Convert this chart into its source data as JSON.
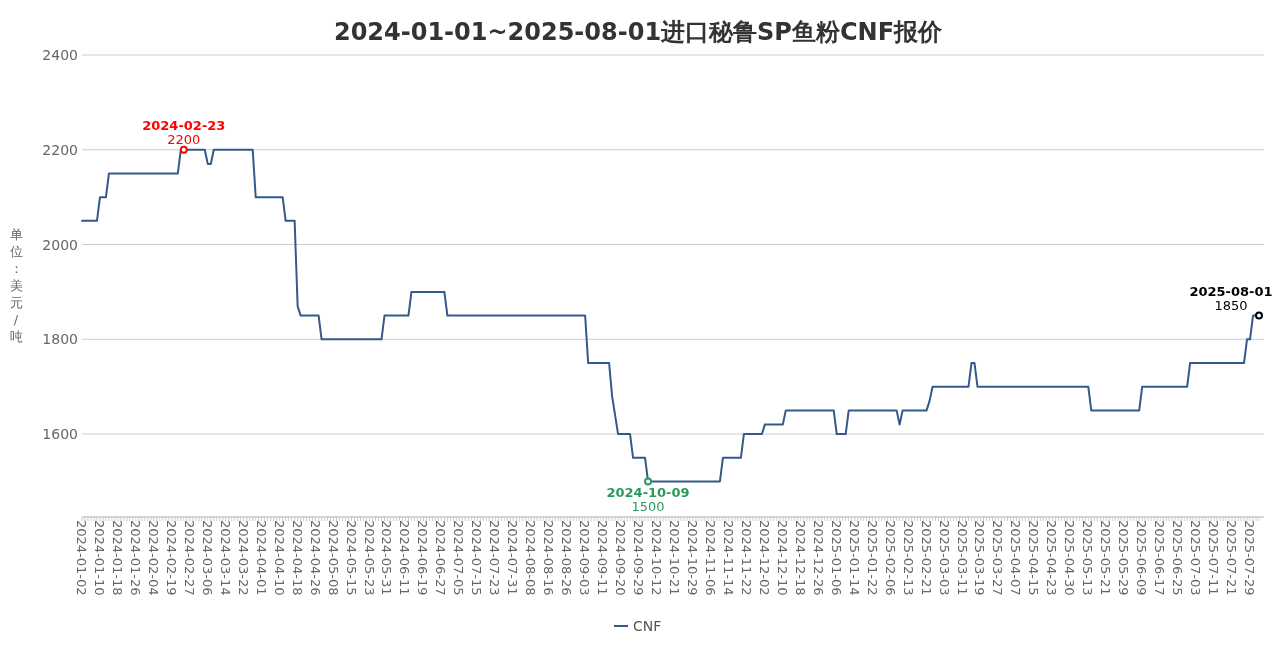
{
  "chart_data": {
    "type": "line",
    "title": "2024-01-01~2025-08-01进口秘鲁SP鱼粉CNF报价",
    "ylabel": "单位：美元/吨",
    "categories": [
      "2024-01-02",
      null,
      null,
      null,
      null,
      null,
      "2024-01-10",
      null,
      null,
      null,
      null,
      null,
      "2024-01-18",
      null,
      null,
      null,
      null,
      null,
      "2024-01-26",
      null,
      null,
      null,
      null,
      null,
      "2024-02-04",
      null,
      null,
      null,
      null,
      null,
      "2024-02-19",
      null,
      null,
      null,
      null,
      null,
      "2024-02-27",
      null,
      null,
      null,
      null,
      null,
      "2024-03-06",
      null,
      null,
      null,
      null,
      null,
      "2024-03-14",
      null,
      null,
      null,
      null,
      null,
      "2024-03-22",
      null,
      null,
      null,
      null,
      null,
      "2024-04-01",
      null,
      null,
      null,
      null,
      null,
      "2024-04-10",
      null,
      null,
      null,
      null,
      null,
      "2024-04-18",
      null,
      null,
      null,
      null,
      null,
      "2024-04-26",
      null,
      null,
      null,
      null,
      null,
      "2024-05-08",
      null,
      null,
      null,
      null,
      null,
      "2024-05-15",
      null,
      null,
      null,
      null,
      null,
      "2024-05-23",
      null,
      null,
      null,
      null,
      null,
      "2024-05-31",
      null,
      null,
      null,
      null,
      null,
      "2024-06-11",
      null,
      null,
      null,
      null,
      null,
      "2024-06-19",
      null,
      null,
      null,
      null,
      null,
      "2024-06-27",
      null,
      null,
      null,
      null,
      null,
      "2024-07-05",
      null,
      null,
      null,
      null,
      null,
      "2024-07-15",
      null,
      null,
      null,
      null,
      null,
      "2024-07-23",
      null,
      null,
      null,
      null,
      null,
      "2024-07-31",
      null,
      null,
      null,
      null,
      null,
      "2024-08-08",
      null,
      null,
      null,
      null,
      null,
      "2024-08-16",
      null,
      null,
      null,
      null,
      null,
      "2024-08-26",
      null,
      null,
      null,
      null,
      null,
      "2024-09-03",
      null,
      null,
      null,
      null,
      null,
      "2024-09-11",
      null,
      null,
      null,
      null,
      null,
      "2024-09-20",
      null,
      null,
      null,
      null,
      null,
      "2024-09-29",
      null,
      null,
      null,
      null,
      null,
      "2024-10-12",
      null,
      null,
      null,
      null,
      null,
      "2024-10-21",
      null,
      null,
      null,
      null,
      null,
      "2024-10-29",
      null,
      null,
      null,
      null,
      null,
      "2024-11-06",
      null,
      null,
      null,
      null,
      null,
      "2024-11-14",
      null,
      null,
      null,
      null,
      null,
      "2024-11-22",
      null,
      null,
      null,
      null,
      null,
      "2024-12-02",
      null,
      null,
      null,
      null,
      null,
      "2024-12-10",
      null,
      null,
      null,
      null,
      null,
      "2024-12-18",
      null,
      null,
      null,
      null,
      null,
      "2024-12-26",
      null,
      null,
      null,
      null,
      null,
      "2025-01-06",
      null,
      null,
      null,
      null,
      null,
      "2025-01-14",
      null,
      null,
      null,
      null,
      null,
      "2025-01-22",
      null,
      null,
      null,
      null,
      null,
      "2025-02-06",
      null,
      null,
      null,
      null,
      null,
      "2025-02-13",
      null,
      null,
      null,
      null,
      null,
      "2025-02-21",
      null,
      null,
      null,
      null,
      null,
      "2025-03-03",
      null,
      null,
      null,
      null,
      null,
      "2025-03-11",
      null,
      null,
      null,
      null,
      null,
      "2025-03-19",
      null,
      null,
      null,
      null,
      null,
      "2025-03-27",
      null,
      null,
      null,
      null,
      null,
      "2025-04-07",
      null,
      null,
      null,
      null,
      null,
      "2025-04-15",
      null,
      null,
      null,
      null,
      null,
      "2025-04-23",
      null,
      null,
      null,
      null,
      null,
      "2025-04-30",
      null,
      null,
      null,
      null,
      null,
      "2025-05-13",
      null,
      null,
      null,
      null,
      null,
      "2025-05-21",
      null,
      null,
      null,
      null,
      null,
      "2025-05-29",
      null,
      null,
      null,
      null,
      null,
      "2025-06-09",
      null,
      null,
      null,
      null,
      null,
      "2025-06-17",
      null,
      null,
      null,
      null,
      null,
      "2025-06-25",
      null,
      null,
      null,
      null,
      null,
      "2025-07-03",
      null,
      null,
      null,
      null,
      null,
      "2025-07-11",
      null,
      null,
      null,
      null,
      null,
      "2025-07-21",
      null,
      null,
      null,
      null,
      null,
      "2025-07-29",
      null,
      null,
      null
    ],
    "series": [
      {
        "name": "CNF",
        "color": "#345a8c",
        "values": [
          2050,
          2050,
          2050,
          2050,
          2050,
          2050,
          2100,
          2100,
          2100,
          2150,
          2150,
          2150,
          2150,
          2150,
          2150,
          2150,
          2150,
          2150,
          2150,
          2150,
          2150,
          2150,
          2150,
          2150,
          2150,
          2150,
          2150,
          2150,
          2150,
          2150,
          2150,
          2150,
          2150,
          2200,
          2200,
          2200,
          2200,
          2200,
          2200,
          2200,
          2200,
          2200,
          2170,
          2170,
          2200,
          2200,
          2200,
          2200,
          2200,
          2200,
          2200,
          2200,
          2200,
          2200,
          2200,
          2200,
          2200,
          2200,
          2100,
          2100,
          2100,
          2100,
          2100,
          2100,
          2100,
          2100,
          2100,
          2100,
          2050,
          2050,
          2050,
          2050,
          1870,
          1850,
          1850,
          1850,
          1850,
          1850,
          1850,
          1850,
          1800,
          1800,
          1800,
          1800,
          1800,
          1800,
          1800,
          1800,
          1800,
          1800,
          1800,
          1800,
          1800,
          1800,
          1800,
          1800,
          1800,
          1800,
          1800,
          1800,
          1800,
          1850,
          1850,
          1850,
          1850,
          1850,
          1850,
          1850,
          1850,
          1850,
          1900,
          1900,
          1900,
          1900,
          1900,
          1900,
          1900,
          1900,
          1900,
          1900,
          1900,
          1900,
          1850,
          1850,
          1850,
          1850,
          1850,
          1850,
          1850,
          1850,
          1850,
          1850,
          1850,
          1850,
          1850,
          1850,
          1850,
          1850,
          1850,
          1850,
          1850,
          1850,
          1850,
          1850,
          1850,
          1850,
          1850,
          1850,
          1850,
          1850,
          1850,
          1850,
          1850,
          1850,
          1850,
          1850,
          1850,
          1850,
          1850,
          1850,
          1850,
          1850,
          1850,
          1850,
          1850,
          1850,
          1850,
          1850,
          1850,
          1750,
          1750,
          1750,
          1750,
          1750,
          1750,
          1750,
          1750,
          1680,
          1640,
          1600,
          1600,
          1600,
          1600,
          1600,
          1550,
          1550,
          1550,
          1550,
          1550,
          1500,
          1500,
          1500,
          1500,
          1500,
          1500,
          1500,
          1500,
          1500,
          1500,
          1500,
          1500,
          1500,
          1500,
          1500,
          1500,
          1500,
          1500,
          1500,
          1500,
          1500,
          1500,
          1500,
          1500,
          1500,
          1550,
          1550,
          1550,
          1550,
          1550,
          1550,
          1550,
          1600,
          1600,
          1600,
          1600,
          1600,
          1600,
          1600,
          1620,
          1620,
          1620,
          1620,
          1620,
          1620,
          1620,
          1650,
          1650,
          1650,
          1650,
          1650,
          1650,
          1650,
          1650,
          1650,
          1650,
          1650,
          1650,
          1650,
          1650,
          1650,
          1650,
          1650,
          1600,
          1600,
          1600,
          1600,
          1650,
          1650,
          1650,
          1650,
          1650,
          1650,
          1650,
          1650,
          1650,
          1650,
          1650,
          1650,
          1650,
          1650,
          1650,
          1650,
          1650,
          1620,
          1650,
          1650,
          1650,
          1650,
          1650,
          1650,
          1650,
          1650,
          1650,
          1670,
          1700,
          1700,
          1700,
          1700,
          1700,
          1700,
          1700,
          1700,
          1700,
          1700,
          1700,
          1700,
          1700,
          1750,
          1750,
          1700,
          1700,
          1700,
          1700,
          1700,
          1700,
          1700,
          1700,
          1700,
          1700,
          1700,
          1700,
          1700,
          1700,
          1700,
          1700,
          1700,
          1700,
          1700,
          1700,
          1700,
          1700,
          1700,
          1700,
          1700,
          1700,
          1700,
          1700,
          1700,
          1700,
          1700,
          1700,
          1700,
          1700,
          1700,
          1700,
          1700,
          1700,
          1650,
          1650,
          1650,
          1650,
          1650,
          1650,
          1650,
          1650,
          1650,
          1650,
          1650,
          1650,
          1650,
          1650,
          1650,
          1650,
          1650,
          1700,
          1700,
          1700,
          1700,
          1700,
          1700,
          1700,
          1700,
          1700,
          1700,
          1700,
          1700,
          1700,
          1700,
          1700,
          1700,
          1750,
          1750,
          1750,
          1750,
          1750,
          1750,
          1750,
          1750,
          1750,
          1750,
          1750,
          1750,
          1750,
          1750,
          1750,
          1750,
          1750,
          1750,
          1750,
          1800,
          1800,
          1850,
          1850,
          1850
        ],
        "value_labels": [
          null,
          null,
          null,
          null,
          null,
          null,
          null,
          null,
          null,
          null,
          null,
          null,
          null,
          null,
          null,
          null,
          null,
          null,
          null,
          null,
          null,
          null,
          null,
          null,
          null,
          null,
          null,
          null,
          null,
          null,
          null,
          null,
          null,
          null,
          "2024-02-23\n2200",
          null,
          null,
          null,
          null,
          null,
          null,
          null,
          null,
          null,
          null,
          null,
          null,
          null,
          null,
          null,
          null,
          null,
          null,
          null,
          null,
          null,
          null,
          null,
          null,
          null,
          null,
          null,
          null,
          null,
          null,
          null,
          null,
          null,
          null,
          null,
          null,
          null,
          null,
          null,
          null,
          null,
          null,
          null,
          null,
          null,
          null,
          null,
          null,
          null,
          null,
          null,
          null,
          null,
          null,
          null,
          null,
          null,
          null,
          null,
          null,
          null,
          null,
          null,
          null,
          null,
          null,
          null,
          null,
          null,
          null,
          null,
          null,
          null,
          null,
          null,
          null,
          null,
          null,
          null,
          null,
          null,
          null,
          null,
          null,
          null,
          null,
          null,
          null,
          null,
          null,
          null,
          null,
          null,
          null,
          null,
          null,
          null,
          null,
          null,
          null,
          null,
          null,
          null,
          null,
          null,
          null,
          null,
          null,
          null,
          null,
          null,
          null,
          null,
          null,
          null,
          null,
          null,
          null,
          null,
          null,
          null,
          null,
          null,
          null,
          null,
          null,
          null,
          null,
          null,
          null,
          null,
          null,
          null,
          null,
          null,
          null,
          null,
          null,
          null,
          null,
          null,
          null,
          null,
          null,
          null,
          null,
          null,
          null,
          null,
          null,
          null,
          null,
          null,
          null,
          "2024-10-09\n1500",
          null,
          null,
          null,
          null,
          null,
          null,
          null,
          null,
          null,
          null,
          null,
          null,
          null,
          null,
          null,
          null,
          null,
          null,
          null,
          null,
          null,
          null,
          null,
          null,
          null,
          null,
          null,
          null,
          null,
          null,
          null,
          null,
          null,
          null,
          null,
          null,
          null,
          null,
          null,
          null,
          null,
          null,
          null,
          null,
          null,
          null,
          null,
          null,
          null,
          null,
          null,
          null,
          null,
          null,
          null,
          null,
          null,
          null,
          null,
          null,
          null,
          null,
          null,
          null,
          null,
          null,
          null,
          null,
          null,
          null,
          null,
          null,
          null,
          null,
          null,
          null,
          null,
          null,
          null,
          null,
          null,
          null,
          null,
          null,
          null,
          null,
          null,
          null,
          null,
          null,
          null,
          null,
          null,
          null,
          null,
          null,
          null,
          null,
          null,
          null,
          null,
          null,
          null,
          null,
          null,
          null,
          null,
          null,
          null,
          null,
          null,
          null,
          null,
          null,
          null,
          null,
          null,
          null,
          null,
          null,
          null,
          null,
          null,
          null,
          null,
          null,
          null,
          null,
          null,
          null,
          null,
          null,
          null,
          null,
          null,
          null,
          null,
          null,
          null,
          null,
          null,
          null,
          null,
          null,
          null,
          null,
          null,
          null,
          null,
          null,
          null,
          null,
          null,
          null,
          null,
          null,
          null,
          null,
          null,
          null,
          null,
          null,
          null,
          null,
          null,
          null,
          null,
          null,
          null,
          null,
          null,
          null,
          null,
          null,
          null,
          null,
          null,
          null,
          null,
          null,
          null,
          null,
          null,
          null,
          null,
          null,
          null,
          null,
          null,
          null,
          null,
          null,
          null,
          null,
          null,
          null,
          null,
          null,
          null,
          null,
          null,
          null,
          null,
          "2025-08-01\n1850"
        ]
      }
    ],
    "ylim": [
      1425,
      2400
    ],
    "yticks": [
      1600,
      1800,
      2000,
      2200,
      2400
    ],
    "grid": "y",
    "legend": "bottom"
  }
}
